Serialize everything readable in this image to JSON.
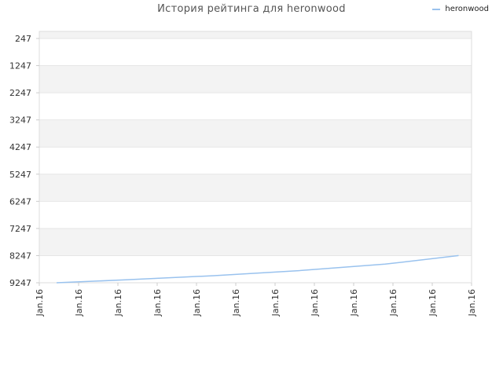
{
  "chart_data": {
    "type": "line",
    "title": "История рейтинга для heronwood",
    "xlabel": "",
    "ylabel": "",
    "y_inverted": true,
    "ylim": [
      247,
      9247
    ],
    "y_ticks": [
      "247",
      "1247",
      "2247",
      "3247",
      "4247",
      "5247",
      "6247",
      "7247",
      "8247",
      "9247"
    ],
    "x_ticks": [
      "Jan.16",
      "Jan.16",
      "Jan.16",
      "Jan.16",
      "Jan.16",
      "Jan.16",
      "Jan.16",
      "Jan.16",
      "Jan.16",
      "Jan.16",
      "Jan.16",
      "Jan.16"
    ],
    "grid": true,
    "legend_position": "top-right",
    "series": [
      {
        "name": "heronwood",
        "color": "#99c2ee",
        "x": [
          0.04,
          0.2,
          0.4,
          0.6,
          0.8,
          0.97
        ],
        "values": [
          9247,
          9140,
          8990,
          8800,
          8560,
          8247
        ]
      }
    ]
  }
}
